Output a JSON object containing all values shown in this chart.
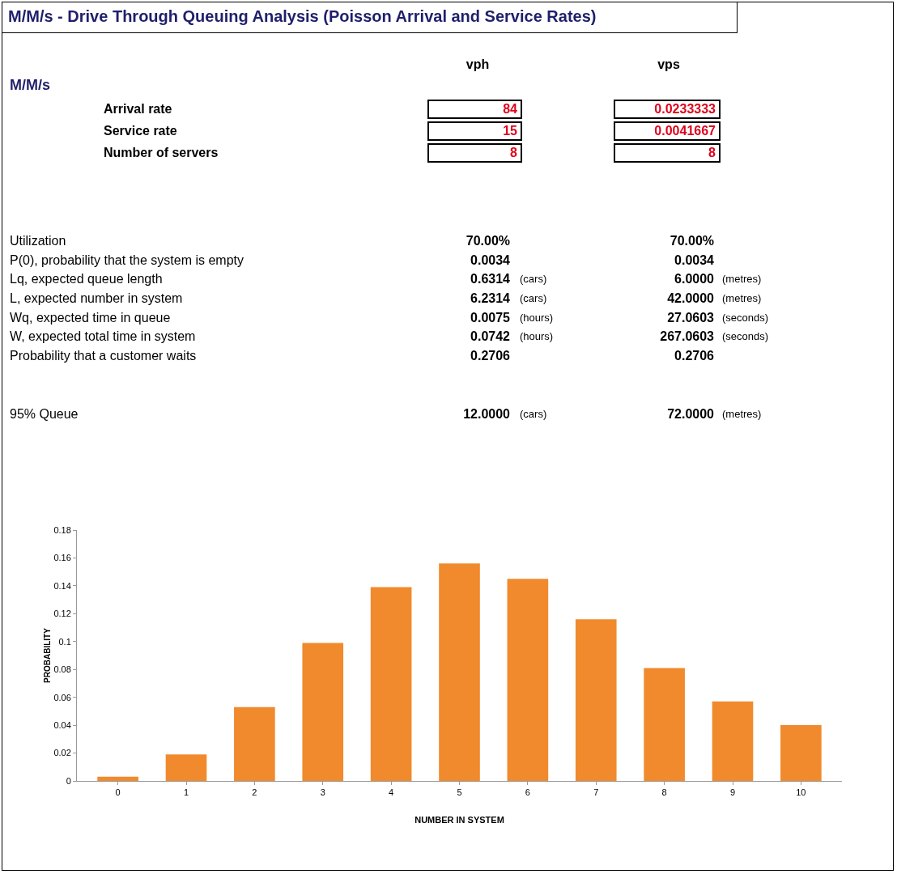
{
  "chart_data": [
    {
      "type": "other",
      "title": "M/M/s - Drive Through Queuing Analysis (Poisson Arrival and Service Rates)",
      "annotations": [
        "vph",
        "vps",
        "M/M/s",
        "Arrival rate",
        "84",
        "0.0233333",
        "Service rate",
        "15",
        "0.0041667",
        "Number of servers",
        "8",
        "8",
        "Utilization",
        "70.00%",
        "70.00%",
        "P(0), probability that the system is empty",
        "0.0034",
        "0.0034",
        "Lq, expected queue length",
        "0.6314",
        "(cars)",
        "6.0000",
        "(metres)",
        "L, expected number in system",
        "6.2314",
        "(cars)",
        "42.0000",
        "(metres)",
        "Wq, expected time in queue",
        "0.0075",
        "(hours)",
        "27.0603",
        "(seconds)",
        "W, expected total time in system",
        "0.0742",
        "(hours)",
        "267.0603",
        "(seconds)",
        "Probability that a customer waits",
        "0.2706",
        "0.2706",
        "95% Queue",
        "12.0000",
        "(cars)",
        "72.0000",
        "(metres)"
      ]
    },
    {
      "type": "bar",
      "xlabel": "NUMBER IN SYSTEM",
      "ylabel": "PROBABILITY",
      "categories": [
        "0",
        "1",
        "2",
        "3",
        "4",
        "5",
        "6",
        "7",
        "8",
        "9",
        "10"
      ],
      "values": [
        0.003,
        0.019,
        0.053,
        0.099,
        0.139,
        0.156,
        0.145,
        0.116,
        0.081,
        0.057,
        0.04
      ],
      "color": "#f08a2c",
      "ylim": [
        0,
        0.18
      ],
      "yticks": [
        0,
        0.02,
        0.04,
        0.06,
        0.08,
        0.1,
        0.12,
        0.14,
        0.16,
        0.18
      ],
      "grid": false
    }
  ]
}
